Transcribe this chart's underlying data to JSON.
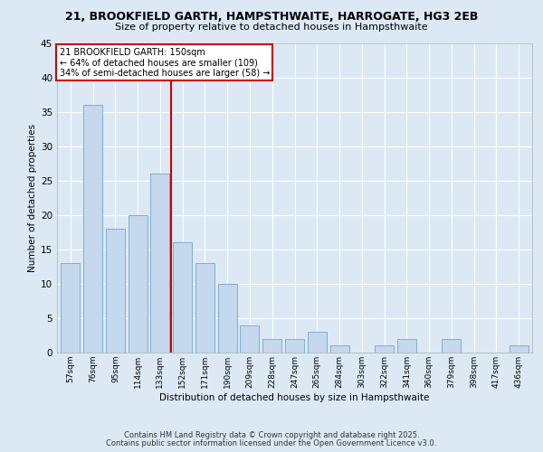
{
  "title1": "21, BROOKFIELD GARTH, HAMPSTHWAITE, HARROGATE, HG3 2EB",
  "title2": "Size of property relative to detached houses in Hampsthwaite",
  "xlabel": "Distribution of detached houses by size in Hampsthwaite",
  "ylabel": "Number of detached properties",
  "categories": [
    "57sqm",
    "76sqm",
    "95sqm",
    "114sqm",
    "133sqm",
    "152sqm",
    "171sqm",
    "190sqm",
    "209sqm",
    "228sqm",
    "247sqm",
    "265sqm",
    "284sqm",
    "303sqm",
    "322sqm",
    "341sqm",
    "360sqm",
    "379sqm",
    "398sqm",
    "417sqm",
    "436sqm"
  ],
  "values": [
    13,
    36,
    18,
    20,
    26,
    16,
    13,
    10,
    4,
    2,
    2,
    3,
    1,
    0,
    1,
    2,
    0,
    2,
    0,
    0,
    1
  ],
  "bar_color": "#c5d8ed",
  "bar_edge_color": "#7bafd4",
  "marker_index": 5,
  "marker_label": "21 BROOKFIELD GARTH: 150sqm",
  "marker_line1": "← 64% of detached houses are smaller (109)",
  "marker_line2": "34% of semi-detached houses are larger (58) →",
  "marker_color": "#cc0000",
  "ylim": [
    0,
    45
  ],
  "yticks": [
    0,
    5,
    10,
    15,
    20,
    25,
    30,
    35,
    40,
    45
  ],
  "background_color": "#dce9f5",
  "plot_bg_color": "#dce9f5",
  "footer1": "Contains HM Land Registry data © Crown copyright and database right 2025.",
  "footer2": "Contains public sector information licensed under the Open Government Licence v3.0."
}
